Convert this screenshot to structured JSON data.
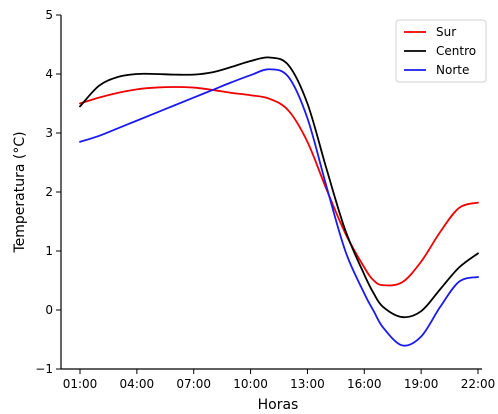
{
  "chart_data": {
    "type": "line",
    "xlabel": "Horas",
    "ylabel": "Temperatura (°C)",
    "x_tick_labels": [
      "01:00",
      "04:00",
      "07:00",
      "10:00",
      "13:00",
      "16:00",
      "19:00",
      "22:00"
    ],
    "x_ticks": [
      1,
      4,
      7,
      10,
      13,
      16,
      19,
      22
    ],
    "xlim": [
      1,
      22
    ],
    "y_ticks": [
      -1,
      0,
      1,
      2,
      3,
      4,
      5
    ],
    "y_tick_labels": [
      "−1",
      "0",
      "1",
      "2",
      "3",
      "4",
      "5"
    ],
    "ylim": [
      -1,
      5
    ],
    "grid": false,
    "legend_position": "top-right",
    "x": [
      1,
      2,
      3,
      4,
      5,
      6,
      7,
      8,
      9,
      10,
      11,
      12,
      13,
      14,
      15,
      16,
      16.5,
      17,
      18,
      19,
      20,
      21,
      22
    ],
    "series": [
      {
        "name": "Sur",
        "color": "#ee0000",
        "values": [
          3.5,
          3.6,
          3.68,
          3.74,
          3.77,
          3.78,
          3.77,
          3.73,
          3.68,
          3.64,
          3.58,
          3.38,
          2.85,
          2.05,
          1.3,
          0.72,
          0.5,
          0.42,
          0.47,
          0.82,
          1.32,
          1.73,
          1.82
        ]
      },
      {
        "name": "Centro",
        "color": "#000000",
        "values": [
          3.45,
          3.8,
          3.95,
          4.0,
          4.0,
          3.99,
          3.99,
          4.03,
          4.12,
          4.22,
          4.28,
          4.15,
          3.5,
          2.4,
          1.35,
          0.6,
          0.28,
          0.05,
          -0.12,
          -0.02,
          0.35,
          0.72,
          0.96
        ]
      },
      {
        "name": "Norte",
        "color": "#1a1aee",
        "values": [
          2.85,
          2.95,
          3.08,
          3.21,
          3.34,
          3.47,
          3.6,
          3.73,
          3.86,
          3.98,
          4.08,
          3.95,
          3.25,
          2.1,
          1.0,
          0.28,
          -0.02,
          -0.3,
          -0.6,
          -0.45,
          0.05,
          0.48,
          0.56
        ]
      }
    ]
  }
}
